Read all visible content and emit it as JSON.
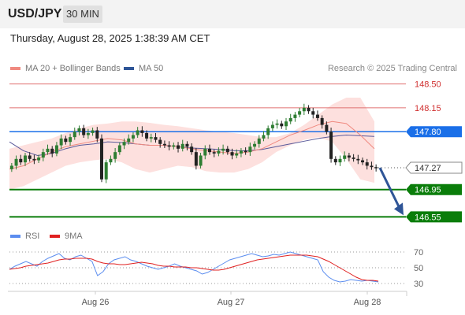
{
  "header": {
    "symbol": "USD/JPY",
    "timeframe": "30 MIN"
  },
  "datetime": "Thursday, August 28, 2025 1:38:39 AM CET",
  "credit": "Research © 2025 Trading Central",
  "legend_top": [
    {
      "label": "MA 20 + Bollinger Bands",
      "color": "#f08a80"
    },
    {
      "label": "MA 50",
      "color": "#2f5597"
    }
  ],
  "legend_bottom": [
    {
      "label": "RSI",
      "color": "#5b8def"
    },
    {
      "label": "9MA",
      "color": "#e02020"
    }
  ],
  "colors": {
    "up": "#2e7d32",
    "down": "#222222",
    "band": "#fde0de",
    "ma20": "#f08a80",
    "ma50": "#5a5a9a",
    "resistance": "#e07070",
    "pivot": "#1a6fe8",
    "support": "#0a7d0a",
    "arrow": "#2f5597",
    "last": "#333333"
  },
  "chart_data": {
    "type": "candlestick",
    "x_ticks": [
      "Aug 26",
      "Aug 27",
      "Aug 28"
    ],
    "ylim": [
      146.45,
      148.6
    ],
    "last_price": 147.27,
    "levels": [
      {
        "value": 148.5,
        "label": "148.50",
        "kind": "resistance"
      },
      {
        "value": 148.15,
        "label": "148.15",
        "kind": "resistance"
      },
      {
        "value": 147.8,
        "label": "147.80",
        "kind": "pivot"
      },
      {
        "value": 147.27,
        "label": "147.27",
        "kind": "last"
      },
      {
        "value": 146.95,
        "label": "146.95",
        "kind": "support"
      },
      {
        "value": 146.55,
        "label": "146.55",
        "kind": "support"
      }
    ],
    "forecast_target": 146.55,
    "close": [
      147.3,
      147.4,
      147.35,
      147.45,
      147.4,
      147.38,
      147.42,
      147.5,
      147.55,
      147.48,
      147.6,
      147.7,
      147.65,
      147.72,
      147.8,
      147.85,
      147.75,
      147.78,
      147.82,
      147.7,
      147.1,
      147.35,
      147.4,
      147.5,
      147.6,
      147.65,
      147.7,
      147.75,
      147.82,
      147.78,
      147.7,
      147.72,
      147.68,
      147.62,
      147.6,
      147.58,
      147.6,
      147.55,
      147.62,
      147.58,
      147.5,
      147.3,
      147.45,
      147.55,
      147.5,
      147.48,
      147.52,
      147.55,
      147.5,
      147.45,
      147.48,
      147.52,
      147.5,
      147.58,
      147.62,
      147.7,
      147.75,
      147.85,
      147.9,
      147.92,
      147.88,
      147.95,
      148.0,
      148.05,
      148.1,
      148.15,
      148.1,
      148.05,
      148.0,
      147.9,
      147.8,
      147.4,
      147.35,
      147.4,
      147.45,
      147.42,
      147.4,
      147.38,
      147.35,
      147.3,
      147.28,
      147.27
    ],
    "ma20_upper": [
      147.55,
      147.6,
      147.65,
      147.7,
      147.78,
      147.85,
      147.9,
      147.92,
      147.95,
      147.95,
      147.93,
      147.9,
      147.88,
      147.85,
      147.82,
      147.8,
      147.78,
      147.75,
      147.72,
      147.72,
      147.78,
      147.9,
      148.05,
      148.2,
      148.3,
      148.3,
      147.95
    ],
    "ma20": [
      147.25,
      147.3,
      147.4,
      147.5,
      147.58,
      147.62,
      147.66,
      147.7,
      147.68,
      147.62,
      147.6,
      147.6,
      147.58,
      147.55,
      147.52,
      147.5,
      147.48,
      147.5,
      147.55,
      147.65,
      147.75,
      147.82,
      147.9,
      147.95,
      147.92,
      147.75,
      147.55
    ],
    "ma20_lower": [
      146.95,
      147.0,
      147.1,
      147.2,
      147.3,
      147.35,
      147.38,
      147.4,
      147.35,
      147.25,
      147.2,
      147.25,
      147.3,
      147.28,
      147.22,
      147.2,
      147.2,
      147.25,
      147.35,
      147.5,
      147.6,
      147.68,
      147.72,
      147.65,
      147.4,
      147.1,
      147.05
    ],
    "ma50": [
      147.65,
      147.52,
      147.45,
      147.48,
      147.55,
      147.6,
      147.62,
      147.65,
      147.64,
      147.62,
      147.6,
      147.6,
      147.58,
      147.56,
      147.55,
      147.54,
      147.52,
      147.52,
      147.54,
      147.58,
      147.62,
      147.66,
      147.7,
      147.73,
      147.75,
      147.74,
      147.73
    ],
    "rsi": [
      48,
      52,
      55,
      58,
      55,
      52,
      58,
      62,
      65,
      68,
      62,
      60,
      64,
      66,
      62,
      58,
      40,
      45,
      55,
      60,
      62,
      64,
      60,
      58,
      55,
      52,
      50,
      48,
      50,
      52,
      55,
      52,
      50,
      48,
      46,
      42,
      44,
      48,
      52,
      56,
      60,
      62,
      64,
      66,
      68,
      66,
      64,
      65,
      67,
      66,
      68,
      70,
      68,
      66,
      64,
      62,
      60,
      45,
      38,
      34,
      32,
      33,
      35,
      34,
      33,
      34,
      33,
      32
    ],
    "rsi_ma9": [
      48,
      49,
      50,
      52,
      53,
      54,
      55,
      56,
      58,
      60,
      61,
      61,
      62,
      62,
      62,
      61,
      58,
      56,
      55,
      55,
      54,
      54,
      55,
      56,
      57,
      56,
      55,
      53,
      52,
      52,
      51,
      51,
      51,
      50,
      50,
      49,
      48,
      47,
      47,
      48,
      50,
      52,
      54,
      56,
      58,
      60,
      61,
      62,
      63,
      64,
      65,
      66,
      66,
      66,
      66,
      65,
      64,
      61,
      58,
      54,
      50,
      46,
      42,
      38,
      35,
      34,
      34,
      33
    ],
    "rsi_ticks": [
      70,
      50,
      30
    ],
    "rsi_ylim": [
      25,
      75
    ]
  }
}
